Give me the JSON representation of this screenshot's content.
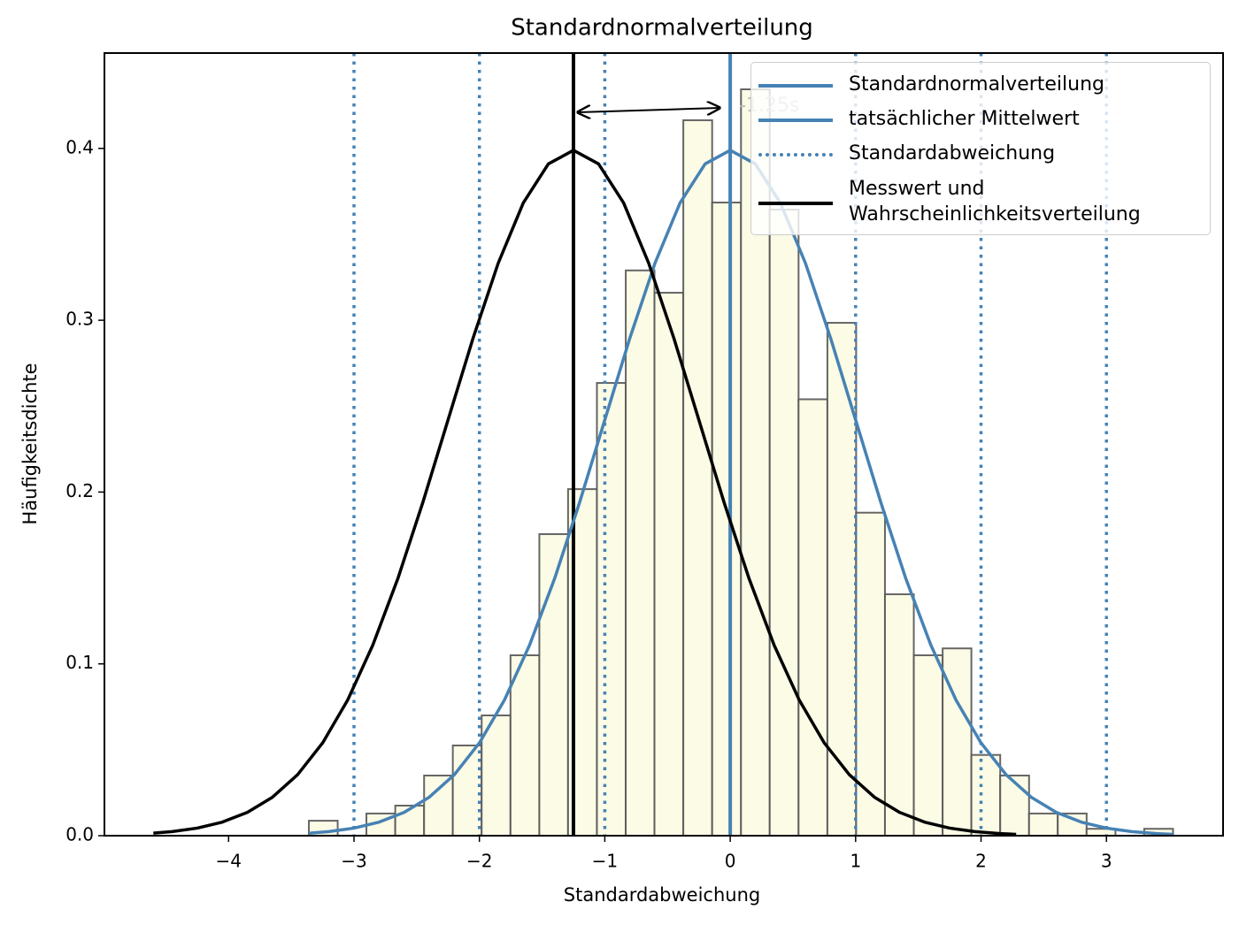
{
  "chart_data": {
    "type": "histogram",
    "title": "Standardnormalverteilung",
    "x_label": "Standardabweichung",
    "y_label": "Häufigkeitsdichte",
    "xlim": [
      -4.99,
      3.93
    ],
    "ylim": [
      0,
      0.4555
    ],
    "xticks": [
      {
        "value": -4,
        "label": "−4"
      },
      {
        "value": -3,
        "label": "−3"
      },
      {
        "value": -2,
        "label": "−2"
      },
      {
        "value": -1,
        "label": "−1"
      },
      0,
      1,
      2,
      3
    ],
    "yticks": [
      {
        "value": 0,
        "label": "0.0"
      },
      0.1,
      0.2,
      0.3,
      0.4
    ],
    "bins": [
      -3.36,
      -3.13,
      -2.901,
      -2.671,
      -2.441,
      -2.212,
      -1.982,
      -1.752,
      -1.522,
      -1.293,
      -1.063,
      -0.833,
      -0.604,
      -0.374,
      -0.144,
      0.086,
      0.315,
      0.545,
      0.775,
      1.004,
      1.234,
      1.464,
      1.694,
      1.923,
      2.153,
      2.383,
      2.612,
      2.842,
      3.072,
      3.301,
      3.531
    ],
    "values": [
      0.0087,
      0,
      0.0129,
      0.0175,
      0.035,
      0.0525,
      0.07,
      0.105,
      0.1755,
      0.2017,
      0.2635,
      0.329,
      0.316,
      0.4164,
      0.3685,
      0.4344,
      0.3644,
      0.254,
      0.2985,
      0.188,
      0.1405,
      0.105,
      0.109,
      0.047,
      0.035,
      0.0129,
      0.0129,
      0.004,
      0,
      0.004
    ],
    "color": "#fbfbe6",
    "edge_color": "#555555",
    "series": [
      {
        "name": "Standardnormalverteilung",
        "color": "#4682b4",
        "x": [
          -3.36,
          -3.2,
          -3.0,
          -2.8,
          -2.6,
          -2.4,
          -2.2,
          -2.0,
          -1.8,
          -1.6,
          -1.4,
          -1.2,
          -1.0,
          -0.8,
          -0.6,
          -0.4,
          -0.2,
          0,
          0.2,
          0.4,
          0.6,
          0.8,
          1.0,
          1.2,
          1.4,
          1.6,
          1.8,
          2.0,
          2.2,
          2.4,
          2.6,
          2.8,
          3.0,
          3.2,
          3.4,
          3.53
        ],
        "values": [
          0.0014,
          0.0024,
          0.0044,
          0.0079,
          0.0136,
          0.0224,
          0.0355,
          0.054,
          0.079,
          0.1109,
          0.1497,
          0.1942,
          0.242,
          0.2897,
          0.3332,
          0.3683,
          0.391,
          0.3989,
          0.391,
          0.3683,
          0.3332,
          0.2897,
          0.242,
          0.1942,
          0.1497,
          0.1109,
          0.079,
          0.054,
          0.0355,
          0.0224,
          0.0136,
          0.0079,
          0.0044,
          0.0024,
          0.0012,
          0.0008
        ]
      },
      {
        "name": "tatsächlicher Mittelwert",
        "color": "#4682b4",
        "vline": [
          0
        ]
      },
      {
        "name": "Standardabweichung",
        "color": "#4682b4",
        "style": "dotted",
        "vline": [
          -3,
          -2,
          -1,
          1,
          2,
          3
        ]
      },
      {
        "name": "Messwert und\nWahrscheinlichkeitsverteilung",
        "color": "#000000",
        "vline": [
          -1.25
        ],
        "x": [
          -4.6,
          -4.45,
          -4.25,
          -4.05,
          -3.85,
          -3.65,
          -3.45,
          -3.25,
          -3.05,
          -2.85,
          -2.65,
          -2.45,
          -2.25,
          -2.05,
          -1.85,
          -1.65,
          -1.45,
          -1.25,
          -1.05,
          -0.85,
          -0.65,
          -0.45,
          -0.25,
          -0.05,
          0.15,
          0.35,
          0.55,
          0.75,
          0.95,
          1.15,
          1.35,
          1.55,
          1.75,
          1.95,
          2.15,
          2.28
        ],
        "values": [
          0.0015,
          0.0024,
          0.0044,
          0.0079,
          0.0136,
          0.0224,
          0.0355,
          0.054,
          0.079,
          0.1109,
          0.1497,
          0.1942,
          0.242,
          0.2897,
          0.3332,
          0.3683,
          0.391,
          0.3989,
          0.391,
          0.3683,
          0.3332,
          0.2897,
          0.242,
          0.1942,
          0.1497,
          0.1109,
          0.079,
          0.054,
          0.0355,
          0.0224,
          0.0136,
          0.0079,
          0.0044,
          0.0024,
          0.0012,
          0.0008
        ]
      }
    ],
    "annotation": "-1.25s",
    "legend": "upper right"
  }
}
